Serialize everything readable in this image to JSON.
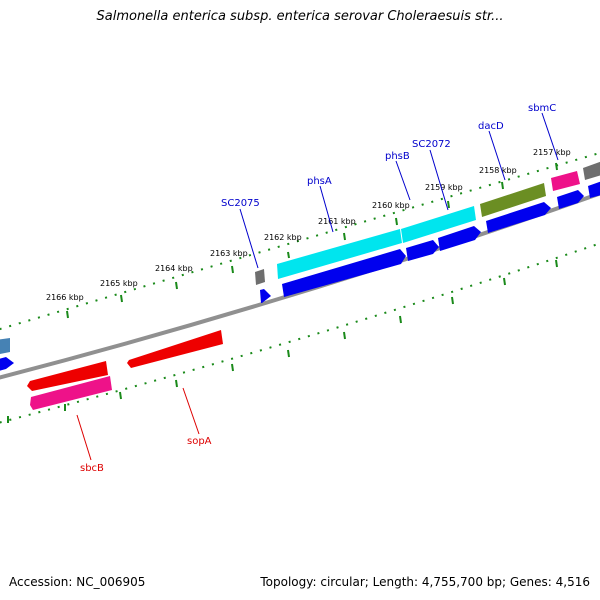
{
  "header": {
    "title": "Salmonella enterica subsp. enterica serovar Choleraesuis str..."
  },
  "footer": {
    "accession": "Accession: NC_006905",
    "summary": "Topology: circular; Length: 4,755,700 bp; Genes: 4,516"
  },
  "ticks": [
    {
      "label": "2166 kbp"
    },
    {
      "label": "2165 kbp"
    },
    {
      "label": "2164 kbp"
    },
    {
      "label": "2163 kbp"
    },
    {
      "label": "2162 kbp"
    },
    {
      "label": "2161 kbp"
    },
    {
      "label": "2160 kbp"
    },
    {
      "label": "2159 kbp"
    },
    {
      "label": "2158 kbp"
    },
    {
      "label": "2157 kbp"
    }
  ],
  "genes": [
    {
      "name": "SC2075",
      "color": "#0000cc"
    },
    {
      "name": "phsA",
      "color": "#0000cc"
    },
    {
      "name": "phsB",
      "color": "#0000cc"
    },
    {
      "name": "SC2072",
      "color": "#0000cc"
    },
    {
      "name": "dacD",
      "color": "#0000cc"
    },
    {
      "name": "sbmC",
      "color": "#0000cc"
    },
    {
      "name": "sbcB",
      "color": "#dd0000"
    },
    {
      "name": "sopA",
      "color": "#dd0000"
    }
  ],
  "colors": {
    "backbone": "#808080",
    "ticks": "#1a8a1a",
    "cds_forward": "#0000ee",
    "cds_cyan": "#00e5ee",
    "cds_olive": "#6b8e23",
    "cds_pink": "#ee1289",
    "cds_red": "#ee0000",
    "cds_gray": "#808080",
    "cds_steelblue": "#4682b4"
  }
}
